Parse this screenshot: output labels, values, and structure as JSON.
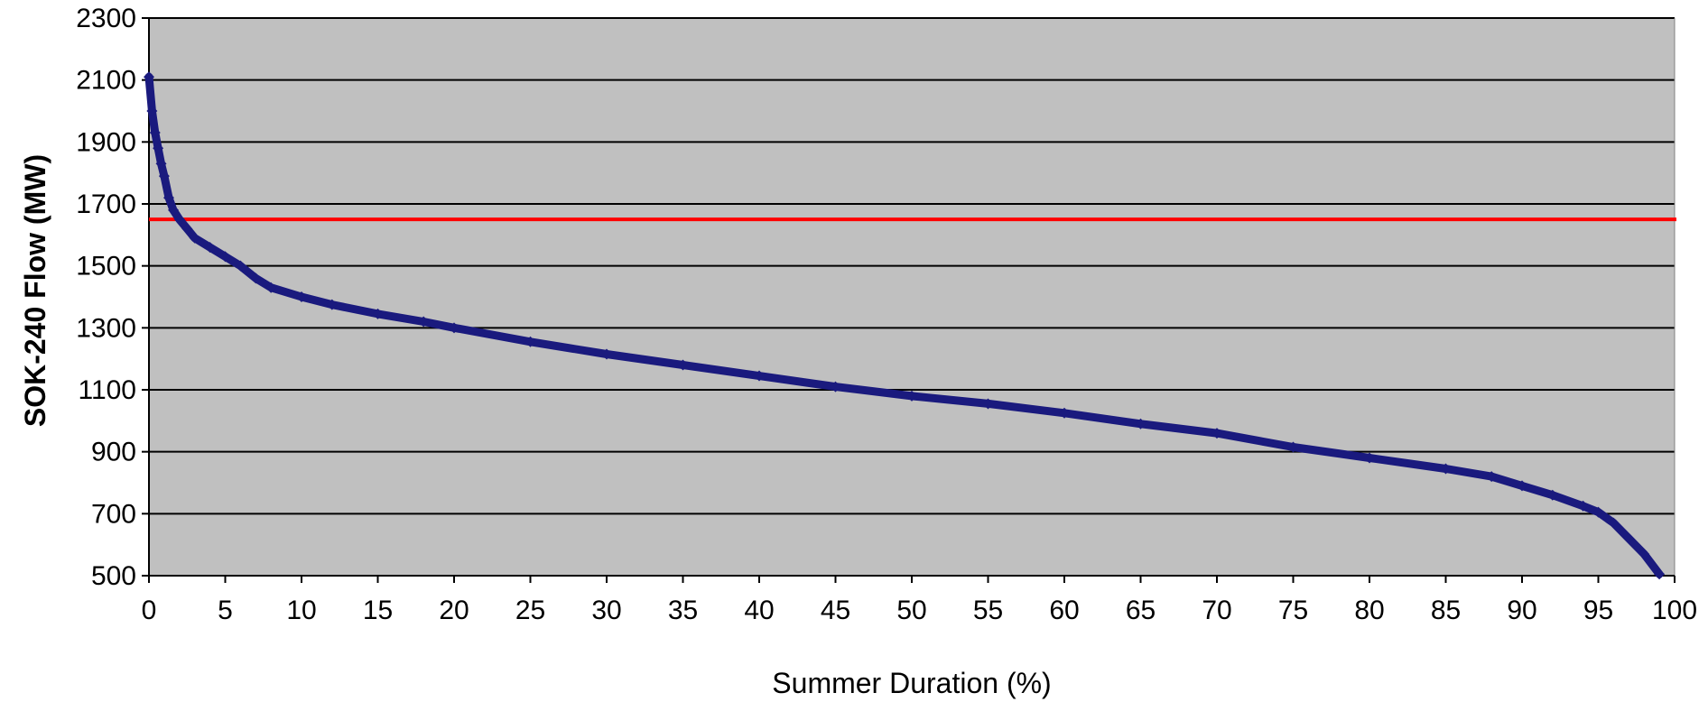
{
  "chart_data": {
    "type": "scatter",
    "title": "",
    "xlabel": "Summer Duration (%)",
    "ylabel": "SOK-240 Flow (MW)",
    "xlim": [
      0,
      100
    ],
    "ylim": [
      500,
      2300
    ],
    "xticks": [
      0,
      5,
      10,
      15,
      20,
      25,
      30,
      35,
      40,
      45,
      50,
      55,
      60,
      65,
      70,
      75,
      80,
      85,
      90,
      95,
      100
    ],
    "yticks": [
      500,
      700,
      900,
      1100,
      1300,
      1500,
      1700,
      1900,
      2100,
      2300
    ],
    "grid": "horizontal",
    "legend": "none",
    "plot_background": "#c0c0c0",
    "series": [
      {
        "color": "#1a1a7e",
        "marker": "diamond",
        "x": [
          0,
          0.2,
          0.4,
          0.6,
          0.8,
          1,
          1.3,
          1.6,
          2,
          2.5,
          3,
          4,
          5,
          6,
          7,
          8,
          10,
          12,
          15,
          18,
          20,
          25,
          30,
          35,
          40,
          45,
          50,
          55,
          60,
          65,
          70,
          75,
          80,
          85,
          88,
          90,
          92,
          94,
          95,
          96,
          97,
          98,
          99
        ],
        "y": [
          2110,
          2000,
          1930,
          1880,
          1830,
          1790,
          1720,
          1680,
          1650,
          1620,
          1590,
          1560,
          1530,
          1500,
          1460,
          1430,
          1400,
          1375,
          1345,
          1320,
          1300,
          1255,
          1215,
          1180,
          1145,
          1110,
          1080,
          1055,
          1025,
          990,
          960,
          915,
          880,
          845,
          820,
          790,
          760,
          725,
          705,
          670,
          620,
          570,
          505
        ]
      }
    ],
    "reference_line": {
      "y": 1650,
      "color": "#ff0000"
    }
  }
}
